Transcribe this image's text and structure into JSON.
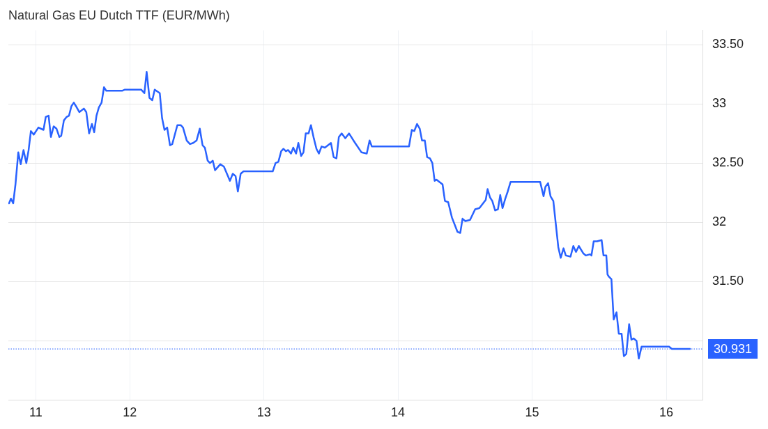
{
  "chart_data": {
    "type": "line",
    "title": "Natural Gas EU Dutch TTF (EUR/MWh)",
    "x": [
      11.1,
      11.114,
      11.131,
      11.148,
      11.169,
      11.187,
      11.208,
      11.229,
      11.246,
      11.263,
      11.284,
      11.319,
      11.357,
      11.374,
      11.395,
      11.412,
      11.433,
      11.454,
      11.475,
      11.489,
      11.509,
      11.53,
      11.547,
      11.565,
      11.583,
      11.599,
      11.624,
      11.658,
      11.676,
      11.697,
      11.718,
      11.735,
      11.752,
      11.77,
      11.79,
      11.808,
      11.825,
      11.943,
      11.964,
      12.085,
      12.109,
      12.126,
      12.147,
      12.168,
      12.186,
      12.224,
      12.241,
      12.259,
      12.279,
      12.3,
      12.317,
      12.355,
      12.38,
      12.397,
      12.425,
      12.449,
      12.473,
      12.498,
      12.522,
      12.543,
      12.56,
      12.581,
      12.598,
      12.619,
      12.636,
      12.675,
      12.702,
      12.747,
      12.768,
      12.789,
      12.806,
      12.827,
      12.848,
      13.066,
      13.087,
      13.108,
      13.129,
      13.146,
      13.164,
      13.181,
      13.202,
      13.219,
      13.24,
      13.257,
      13.278,
      13.295,
      13.312,
      13.333,
      13.351,
      13.372,
      13.392,
      13.41,
      13.43,
      13.455,
      13.5,
      13.52,
      13.541,
      13.559,
      13.58,
      13.607,
      13.635,
      13.68,
      13.728,
      13.767,
      13.788,
      13.805,
      13.822,
      14.082,
      14.103,
      14.121,
      14.142,
      14.162,
      14.179,
      14.2,
      14.217,
      14.238,
      14.256,
      14.273,
      14.287,
      14.332,
      14.35,
      14.374,
      14.402,
      14.443,
      14.464,
      14.481,
      14.502,
      14.537,
      14.575,
      14.607,
      14.634,
      14.654,
      14.668,
      14.686,
      14.703,
      14.724,
      14.745,
      14.762,
      14.779,
      14.8,
      14.818,
      14.839,
      15.06,
      15.085,
      15.099,
      15.119,
      15.137,
      15.158,
      15.175,
      15.195,
      15.213,
      15.234,
      15.251,
      15.286,
      15.307,
      15.327,
      15.348,
      15.38,
      15.4,
      15.431,
      15.442,
      15.459,
      15.484,
      15.518,
      15.532,
      15.553,
      15.562,
      15.573,
      15.591,
      15.608,
      15.629,
      15.646,
      15.667,
      15.684,
      15.702,
      15.723,
      15.74,
      15.757,
      15.778,
      15.795,
      15.816,
      16.021,
      16.042,
      16.177
    ],
    "series": [
      {
        "color": "#2962ff",
        "values": [
          32.16,
          32.2,
          32.16,
          32.32,
          32.59,
          32.49,
          32.61,
          32.5,
          32.61,
          32.77,
          32.74,
          32.8,
          32.78,
          32.89,
          32.9,
          32.72,
          32.81,
          32.79,
          32.72,
          32.73,
          32.86,
          32.89,
          32.9,
          32.98,
          33.01,
          32.98,
          32.93,
          32.96,
          32.93,
          32.75,
          32.83,
          32.76,
          32.9,
          32.97,
          33.01,
          33.14,
          33.11,
          33.11,
          33.12,
          33.12,
          33.09,
          33.27,
          33.05,
          33.03,
          33.12,
          33.09,
          32.88,
          32.78,
          32.8,
          32.65,
          32.66,
          32.82,
          32.82,
          32.8,
          32.69,
          32.66,
          32.67,
          32.69,
          32.79,
          32.65,
          32.63,
          32.52,
          32.5,
          32.52,
          32.44,
          32.49,
          32.47,
          32.35,
          32.41,
          32.39,
          32.26,
          32.41,
          32.43,
          32.43,
          32.5,
          32.51,
          32.6,
          32.62,
          32.6,
          32.61,
          32.58,
          32.63,
          32.58,
          32.67,
          32.56,
          32.59,
          32.75,
          32.75,
          32.82,
          32.71,
          32.62,
          32.58,
          32.64,
          32.63,
          32.67,
          32.55,
          32.54,
          32.72,
          32.75,
          32.71,
          32.75,
          32.67,
          32.59,
          32.58,
          32.69,
          32.64,
          32.64,
          32.64,
          32.78,
          32.77,
          32.83,
          32.79,
          32.69,
          32.69,
          32.55,
          32.54,
          32.5,
          32.35,
          32.36,
          32.32,
          32.18,
          32.17,
          32.04,
          31.92,
          31.91,
          32.03,
          32.01,
          32.02,
          32.11,
          32.12,
          32.16,
          32.19,
          32.28,
          32.21,
          32.18,
          32.1,
          32.11,
          32.23,
          32.12,
          32.2,
          32.26,
          32.34,
          32.34,
          32.22,
          32.3,
          32.33,
          32.22,
          32.18,
          32.0,
          31.79,
          31.7,
          31.78,
          31.72,
          31.71,
          31.8,
          31.75,
          31.8,
          31.74,
          31.72,
          31.73,
          31.72,
          31.84,
          31.84,
          31.85,
          31.72,
          31.72,
          31.56,
          31.54,
          31.52,
          31.18,
          31.24,
          31.06,
          31.06,
          30.87,
          30.89,
          31.14,
          31.01,
          31.02,
          31.0,
          30.85,
          30.95,
          30.95,
          30.931,
          30.931
        ]
      }
    ],
    "xlim": [
      11.095,
      16.27
    ],
    "xticks": [
      {
        "value": 11.3,
        "label": "11"
      },
      12,
      13,
      14,
      15,
      16
    ],
    "ylim": [
      30.5,
      33.62
    ],
    "yticks": [
      {
        "value": 31,
        "label": null
      },
      {
        "value": 31.5,
        "label": "31.50"
      },
      {
        "value": 32,
        "label": "32"
      },
      {
        "value": 32.5,
        "label": "32.50"
      },
      {
        "value": 33,
        "label": "33"
      },
      {
        "value": 33.5,
        "label": "33.50"
      }
    ],
    "ref_lines": [
      {
        "axis": "y",
        "value": 30.931,
        "label": "30.931",
        "color": "#2962ff",
        "line_style": "dotted"
      }
    ],
    "grid": true,
    "legend": false,
    "marker": "none",
    "line_style": "solid"
  }
}
